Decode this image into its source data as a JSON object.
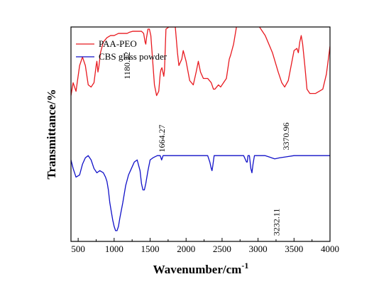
{
  "chart_data": {
    "type": "line",
    "xlabel": "Wavenumber/cm",
    "xlabel_sup": "-1",
    "ylabel": "Transmittance/%",
    "xlim": [
      400,
      4000
    ],
    "ylim": [
      0,
      100
    ],
    "x_ticks": [
      500,
      1000,
      1500,
      2000,
      2500,
      3000,
      3500,
      4000
    ],
    "y_ticks_shown": false,
    "grid": false,
    "legend_position": "top-left",
    "series": [
      {
        "name": "PAA-PEO",
        "color": "#e8191f",
        "x": [
          400,
          430,
          470,
          520,
          560,
          600,
          640,
          680,
          720,
          750,
          760,
          775,
          790,
          810,
          850,
          900,
          950,
          1000,
          1060,
          1100,
          1150,
          1180,
          1210,
          1260,
          1320,
          1380,
          1410,
          1430,
          1440,
          1450,
          1470,
          1490,
          1510,
          1560,
          1590,
          1620,
          1640,
          1650,
          1664,
          1690,
          1700,
          1720,
          1760,
          1800,
          1850,
          1880,
          1900,
          1940,
          1960,
          2000,
          2050,
          2100,
          2140,
          2170,
          2200,
          2240,
          2300,
          2350,
          2380,
          2400,
          2450,
          2480,
          2520,
          2560,
          2600,
          2620,
          2660,
          2700,
          2800,
          2900,
          2950,
          3000,
          3100,
          3200,
          3280,
          3330,
          3370,
          3420,
          3460,
          3500,
          3540,
          3560,
          3580,
          3600,
          3620,
          3650,
          3680,
          3720,
          3800,
          3900,
          3950,
          4000
        ],
        "y": [
          68,
          74,
          70,
          82,
          86,
          82,
          73,
          72,
          74,
          82,
          84,
          79,
          82,
          88,
          93,
          95,
          96,
          96,
          97,
          97,
          97,
          97,
          97.5,
          98,
          98,
          98,
          97,
          93,
          92,
          95,
          99,
          99,
          96,
          73,
          68,
          70,
          78,
          80,
          81,
          77,
          80,
          99,
          100,
          100,
          100,
          88,
          82,
          85,
          89,
          84,
          75,
          73,
          79,
          84,
          79,
          76,
          76,
          74,
          71,
          71,
          73,
          72,
          74,
          76,
          85,
          87,
          92,
          100,
          101,
          101,
          101,
          101,
          96,
          88,
          79,
          74,
          72,
          75,
          82,
          89,
          90,
          88,
          93,
          96,
          92,
          82,
          71,
          69,
          69,
          71,
          78,
          91
        ]
      },
      {
        "name": "CBS glass powder",
        "color": "#1010c8",
        "x": [
          400,
          430,
          470,
          520,
          560,
          600,
          640,
          680,
          720,
          760,
          800,
          850,
          880,
          900,
          920,
          940,
          960,
          980,
          1000,
          1020,
          1040,
          1060,
          1080,
          1120,
          1160,
          1200,
          1240,
          1280,
          1320,
          1360,
          1380,
          1400,
          1420,
          1440,
          1470,
          1500,
          1540,
          1600,
          1640,
          1660,
          1680,
          1720,
          1800,
          1900,
          2000,
          2100,
          2200,
          2300,
          2330,
          2350,
          2360,
          2370,
          2390,
          2420,
          2500,
          2600,
          2700,
          2800,
          2840,
          2850,
          2860,
          2880,
          2900,
          2915,
          2930,
          2950,
          3000,
          3100,
          3232,
          3300,
          3400,
          3500,
          3600,
          3700,
          3800,
          3900,
          4000
        ],
        "y": [
          38,
          34,
          30,
          31,
          36,
          39,
          40,
          38,
          34,
          32,
          33,
          32,
          30,
          28,
          24,
          18,
          14,
          10,
          7,
          5,
          5,
          7,
          11,
          18,
          26,
          31,
          34,
          37,
          38,
          33,
          27,
          24,
          24,
          27,
          33,
          38,
          39,
          40,
          40,
          38,
          40,
          40,
          40,
          40,
          40,
          40,
          40,
          40,
          37,
          34,
          33,
          35,
          40,
          40,
          40,
          40,
          40,
          40,
          37,
          37,
          40,
          40,
          34,
          32,
          36,
          40,
          40,
          40,
          38.5,
          39,
          39.5,
          40,
          40,
          40,
          40,
          40,
          40
        ]
      }
    ],
    "annotations": [
      {
        "text": "1180.22",
        "x": 1180,
        "y": 82,
        "series": "PAA-PEO"
      },
      {
        "text": "1664.27",
        "x": 1664,
        "y": 48,
        "series": "PAA-PEO"
      },
      {
        "text": "3370.96",
        "x": 3390,
        "y": 49,
        "series": "PAA-PEO"
      },
      {
        "text": "3232.11",
        "x": 3255,
        "y": 9,
        "series": "CBS glass powder"
      }
    ]
  }
}
